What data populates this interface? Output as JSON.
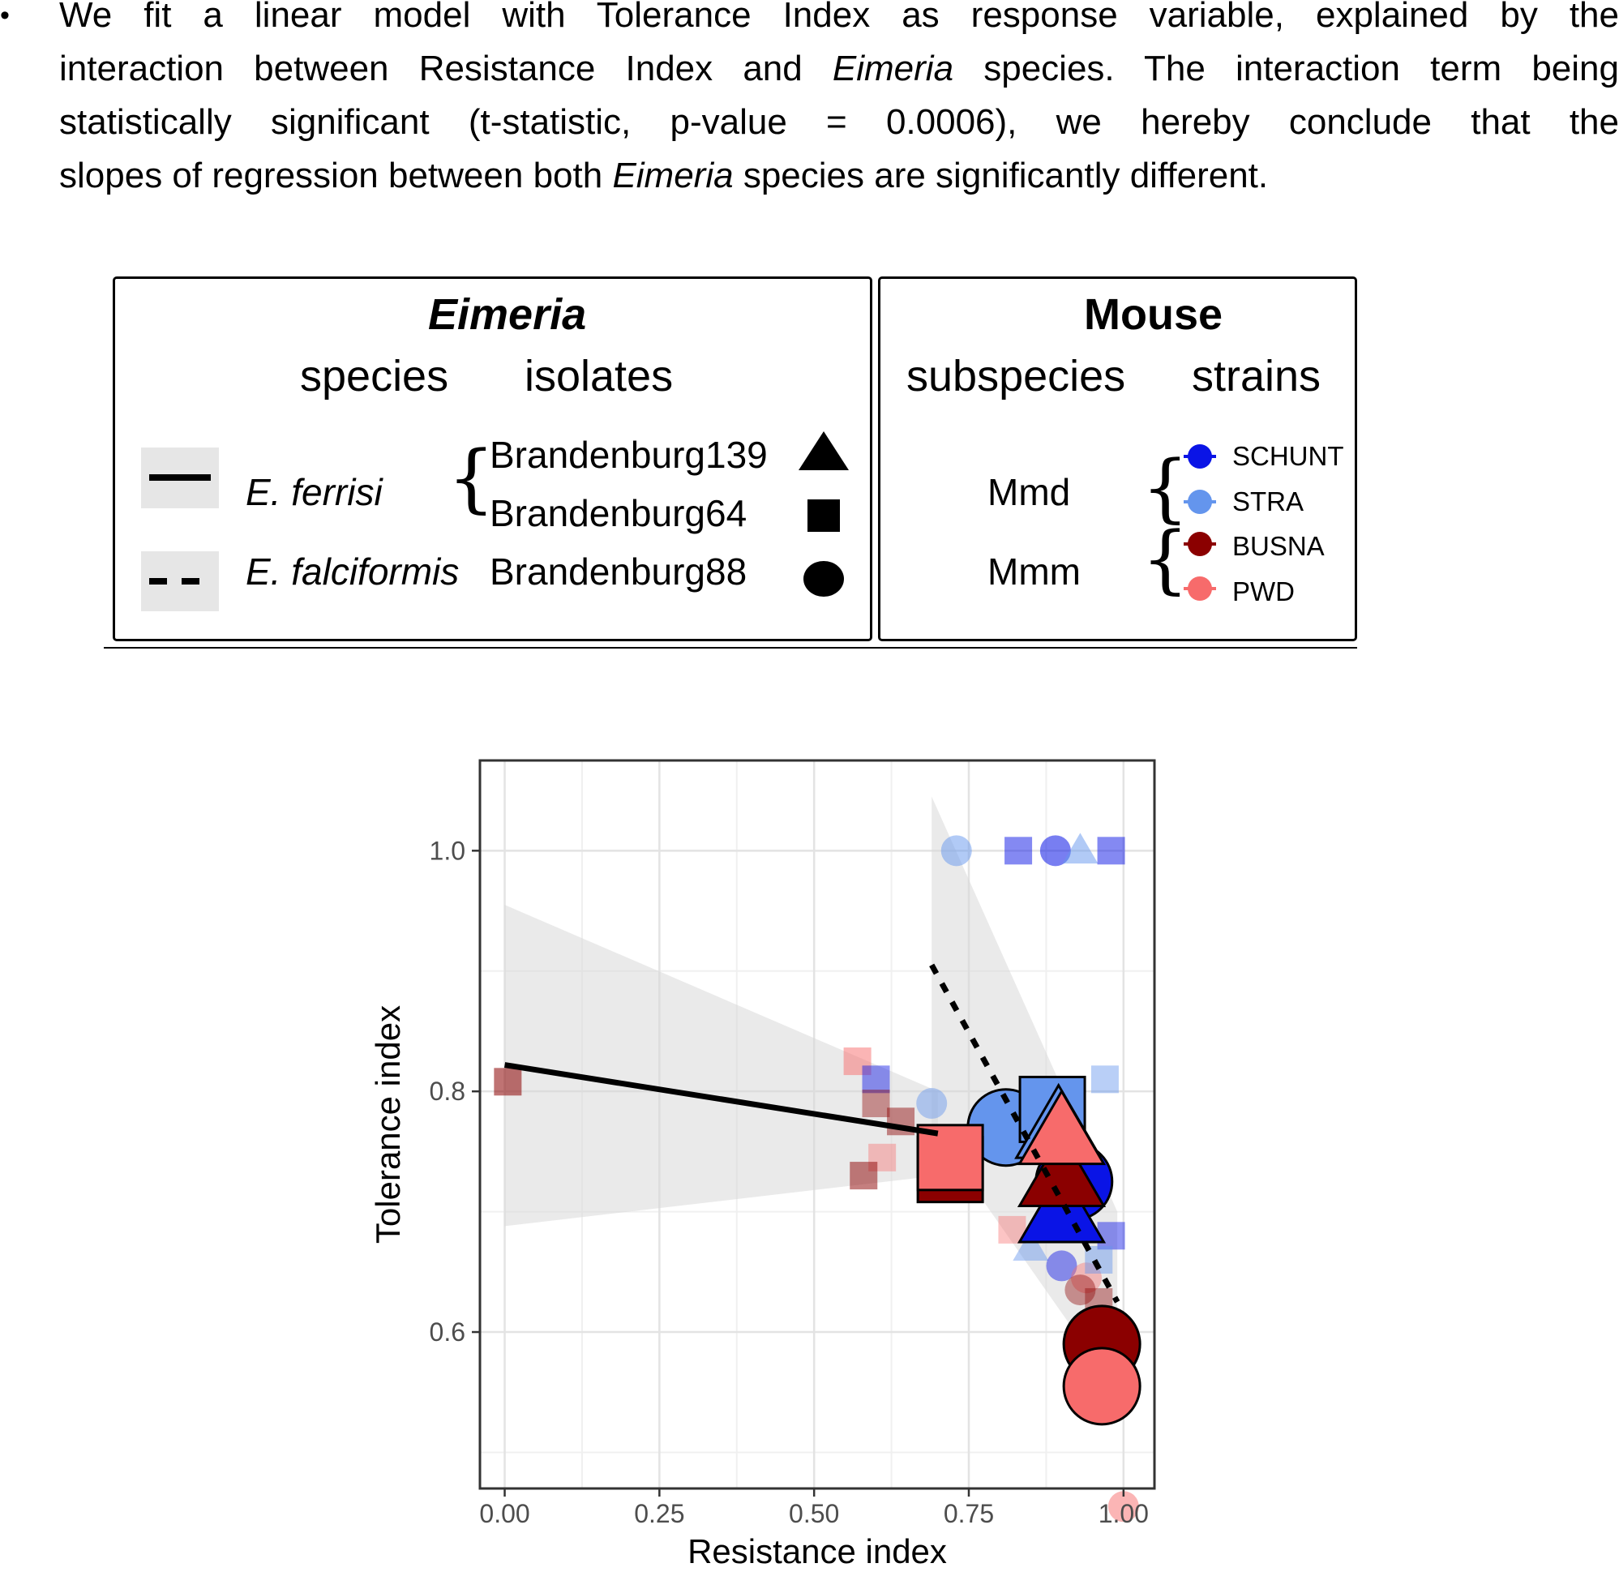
{
  "paragraph": {
    "bullet": "•",
    "lines": [
      {
        "a": "We fit a linear model with Tolerance Index as response variable, explained by the",
        "i": "",
        "b": ""
      },
      {
        "a": "interaction between Resistance Index and ",
        "i": "Eimeria",
        "b": " species. The interaction term being"
      },
      {
        "a": "statistically significant (t-statistic, p-value = 0.0006), we hereby conclude that the",
        "i": "",
        "b": ""
      },
      {
        "a": "slopes of regression between both ",
        "i": "Eimeria",
        "b": " species are significantly different."
      }
    ]
  },
  "legend_eimeria": {
    "title": "Eimeria",
    "col_species": "species",
    "col_isolates": "isolates",
    "species": [
      {
        "name": "E. ferrisi",
        "line": "solid-line-icon",
        "isolates": [
          "Brandenburg139",
          "Brandenburg64"
        ],
        "shapes": [
          "triangle-icon",
          "square-icon"
        ]
      },
      {
        "name": "E. falciformis",
        "line": "dashed-line-icon",
        "isolates": [
          "Brandenburg88"
        ],
        "shapes": [
          "circle-icon"
        ]
      }
    ],
    "brace": "{"
  },
  "legend_mouse": {
    "title": "Mouse",
    "col_subspecies": "subspecies",
    "col_strains": "strains",
    "subspecies": [
      {
        "name": "Mmd",
        "strains": [
          {
            "name": "SCHUNT",
            "color": "#0a14e6"
          },
          {
            "name": "STRA",
            "color": "#6495ed"
          }
        ]
      },
      {
        "name": "Mmm",
        "strains": [
          {
            "name": "BUSNA",
            "color": "#8b0000"
          },
          {
            "name": "PWD",
            "color": "#f76b6b"
          }
        ]
      }
    ],
    "brace": "{"
  },
  "chart_data": {
    "type": "scatter",
    "xlabel": "Resistance index",
    "ylabel": "Tolerance index",
    "xlim": [
      -0.04,
      1.05
    ],
    "ylim": [
      0.47,
      1.075
    ],
    "xticks": [
      0.0,
      0.25,
      0.5,
      0.75,
      1.0
    ],
    "xtick_labels": [
      "0.00",
      "0.25",
      "0.50",
      "0.75",
      "1.00"
    ],
    "yticks": [
      0.6,
      0.8,
      1.0
    ],
    "ytick_labels": [
      "0.6",
      "0.8",
      "1.0"
    ],
    "grid": true,
    "colors": {
      "SCHUNT": "#0a14e6",
      "STRA": "#6495ed",
      "BUSNA": "#8b0000",
      "PWD": "#f76b6b",
      "band": "#d9d9d9"
    },
    "regression": [
      {
        "species": "E. ferrisi",
        "style": "solid",
        "x": [
          0.0,
          0.7
        ],
        "y": [
          0.822,
          0.765
        ],
        "band_upper": [
          [
            0.0,
            0.955
          ],
          [
            0.7,
            0.8
          ]
        ],
        "band_lower": [
          [
            0.0,
            0.688
          ],
          [
            0.7,
            0.73
          ]
        ]
      },
      {
        "species": "E. falciformis",
        "style": "dashed",
        "x": [
          0.69,
          0.99
        ],
        "y": [
          0.905,
          0.625
        ],
        "band_upper": [
          [
            0.69,
            1.045
          ],
          [
            0.99,
            0.7
          ]
        ],
        "band_lower": [
          [
            0.69,
            0.77
          ],
          [
            0.99,
            0.55
          ]
        ]
      }
    ],
    "points": [
      {
        "x": 0.73,
        "y": 1.0,
        "shape": "circle",
        "strain": "STRA",
        "size": "small",
        "alpha": 0.5
      },
      {
        "x": 0.83,
        "y": 1.0,
        "shape": "square",
        "strain": "SCHUNT",
        "size": "small",
        "alpha": 0.5
      },
      {
        "x": 0.89,
        "y": 1.0,
        "shape": "circle",
        "strain": "SCHUNT",
        "size": "small",
        "alpha": 0.55
      },
      {
        "x": 0.93,
        "y": 1.0,
        "shape": "triangle",
        "strain": "STRA",
        "size": "small",
        "alpha": 0.5
      },
      {
        "x": 0.98,
        "y": 1.0,
        "shape": "square",
        "strain": "SCHUNT",
        "size": "small",
        "alpha": 0.5
      },
      {
        "x": 0.005,
        "y": 0.808,
        "shape": "square",
        "strain": "BUSNA",
        "size": "small",
        "alpha": 0.55
      },
      {
        "x": 0.57,
        "y": 0.825,
        "shape": "square",
        "strain": "PWD",
        "size": "small",
        "alpha": 0.5
      },
      {
        "x": 0.6,
        "y": 0.81,
        "shape": "square",
        "strain": "SCHUNT",
        "size": "small",
        "alpha": 0.45
      },
      {
        "x": 0.6,
        "y": 0.79,
        "shape": "square",
        "strain": "BUSNA",
        "size": "small",
        "alpha": 0.4
      },
      {
        "x": 0.64,
        "y": 0.775,
        "shape": "square",
        "strain": "BUSNA",
        "size": "small",
        "alpha": 0.45
      },
      {
        "x": 0.61,
        "y": 0.745,
        "shape": "square",
        "strain": "PWD",
        "size": "small",
        "alpha": 0.4
      },
      {
        "x": 0.58,
        "y": 0.73,
        "shape": "square",
        "strain": "BUSNA",
        "size": "small",
        "alpha": 0.5
      },
      {
        "x": 0.69,
        "y": 0.79,
        "shape": "circle",
        "strain": "STRA",
        "size": "small",
        "alpha": 0.45
      },
      {
        "x": 0.97,
        "y": 0.81,
        "shape": "square",
        "strain": "STRA",
        "size": "small",
        "alpha": 0.45
      },
      {
        "x": 0.82,
        "y": 0.685,
        "shape": "square",
        "strain": "PWD",
        "size": "small",
        "alpha": 0.4
      },
      {
        "x": 0.85,
        "y": 0.67,
        "shape": "triangle",
        "strain": "STRA",
        "size": "small",
        "alpha": 0.45
      },
      {
        "x": 0.98,
        "y": 0.68,
        "shape": "square",
        "strain": "SCHUNT",
        "size": "small",
        "alpha": 0.45
      },
      {
        "x": 0.9,
        "y": 0.655,
        "shape": "circle",
        "strain": "SCHUNT",
        "size": "small",
        "alpha": 0.45
      },
      {
        "x": 0.94,
        "y": 0.645,
        "shape": "circle",
        "strain": "PWD",
        "size": "small",
        "alpha": 0.4
      },
      {
        "x": 0.96,
        "y": 0.66,
        "shape": "square",
        "strain": "STRA",
        "size": "small",
        "alpha": 0.45
      },
      {
        "x": 0.93,
        "y": 0.635,
        "shape": "circle",
        "strain": "BUSNA",
        "size": "small",
        "alpha": 0.4
      },
      {
        "x": 0.96,
        "y": 0.625,
        "shape": "square",
        "strain": "BUSNA",
        "size": "small",
        "alpha": 0.4
      },
      {
        "x": 1.0,
        "y": 0.455,
        "shape": "circle",
        "strain": "PWD",
        "size": "small",
        "alpha": 0.5
      },
      {
        "x": 0.81,
        "y": 0.77,
        "shape": "circle",
        "strain": "STRA",
        "size": "large",
        "alpha": 1
      },
      {
        "x": 0.885,
        "y": 0.785,
        "shape": "square",
        "strain": "STRA",
        "size": "large",
        "alpha": 1
      },
      {
        "x": 0.895,
        "y": 0.77,
        "shape": "triangle",
        "strain": "STRA",
        "size": "large",
        "alpha": 1
      },
      {
        "x": 0.72,
        "y": 0.735,
        "shape": "square",
        "strain": "BUSNA",
        "size": "large",
        "alpha": 1
      },
      {
        "x": 0.72,
        "y": 0.745,
        "shape": "square",
        "strain": "PWD",
        "size": "large",
        "alpha": 1
      },
      {
        "x": 0.92,
        "y": 0.725,
        "shape": "circle",
        "strain": "SCHUNT",
        "size": "large",
        "alpha": 1
      },
      {
        "x": 0.9,
        "y": 0.7,
        "shape": "triangle",
        "strain": "SCHUNT",
        "size": "large",
        "alpha": 1
      },
      {
        "x": 0.9,
        "y": 0.73,
        "shape": "triangle",
        "strain": "BUSNA",
        "size": "large",
        "alpha": 1
      },
      {
        "x": 0.9,
        "y": 0.765,
        "shape": "triangle",
        "strain": "PWD",
        "size": "large",
        "alpha": 1
      },
      {
        "x": 0.965,
        "y": 0.59,
        "shape": "circle",
        "strain": "BUSNA",
        "size": "large",
        "alpha": 1
      },
      {
        "x": 0.965,
        "y": 0.555,
        "shape": "circle",
        "strain": "PWD",
        "size": "large",
        "alpha": 1
      }
    ]
  }
}
